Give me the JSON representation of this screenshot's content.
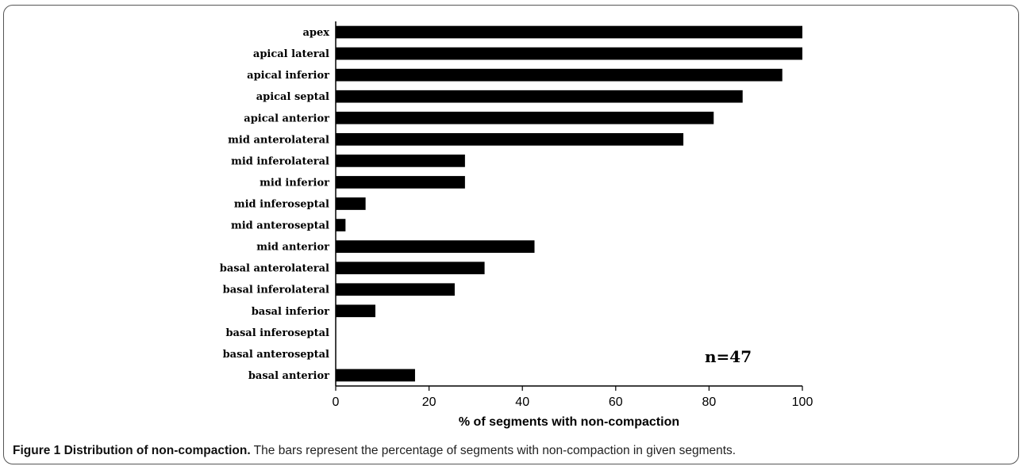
{
  "chart_data": {
    "type": "bar",
    "orientation": "horizontal",
    "categories": [
      "apex",
      "apical lateral",
      "apical inferior",
      "apical septal",
      "apical anterior",
      "mid anterolateral",
      "mid inferolateral",
      "mid inferior",
      "mid inferoseptal",
      "mid anteroseptal",
      "mid anterior",
      "basal anterolateral",
      "basal inferolateral",
      "basal inferior",
      "basal inferoseptal",
      "basal anteroseptal",
      "basal anterior"
    ],
    "values": [
      100,
      100,
      95.7,
      87.2,
      81,
      74.5,
      27.7,
      27.7,
      6.4,
      2.1,
      42.6,
      31.9,
      25.5,
      8.5,
      0,
      0,
      17
    ],
    "xlabel": "% of segments with non-compaction",
    "ylabel": "",
    "xlim": [
      0,
      100
    ],
    "xticks": [
      0,
      20,
      40,
      60,
      80,
      100
    ],
    "bar_color": "#000000",
    "annotation": "n=47",
    "annotation_placement": "bottom-right"
  },
  "caption": {
    "lead": "Figure 1 Distribution of non-compaction.",
    "text": " The bars represent the percentage of segments with non-compaction in given segments."
  }
}
